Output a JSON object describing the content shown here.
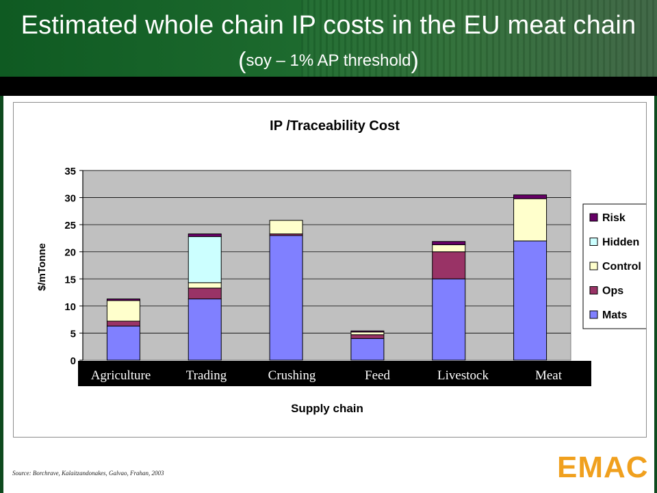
{
  "slide": {
    "title_line1": "Estimated whole chain IP costs in the EU meat chain",
    "title_line2_open": "(",
    "title_line2_text": "soy – 1% AP threshold",
    "title_line2_close": ")",
    "source": "Source: Borchrave,  Kalaitzandonakes, Galvao, Frahan, 2003",
    "logo": "EMAC"
  },
  "colors": {
    "header_green": "#1d6a2e",
    "plot_bg": "#c0c0c0",
    "Mats": "#8080ff",
    "Ops": "#993366",
    "Control": "#ffffcc",
    "Hidden": "#ccffff",
    "Risk": "#660066",
    "logo": "#f0a01e"
  },
  "chart_data": {
    "type": "bar",
    "stacked": true,
    "title": "IP /Traceability Cost",
    "xlabel": "Supply chain",
    "ylabel": "$/mTonne",
    "ylim": [
      0,
      35
    ],
    "yticks": [
      0,
      5,
      10,
      15,
      20,
      25,
      30,
      35
    ],
    "grid": true,
    "legend_position": "right",
    "categories": [
      "Agriculture",
      "Trading",
      "Crushing",
      "Feed",
      "Livestock",
      "Meat"
    ],
    "series": [
      {
        "name": "Mats",
        "color": "#8080ff",
        "values": [
          6.3,
          11.3,
          23.0,
          4.0,
          15.0,
          22.0
        ]
      },
      {
        "name": "Ops",
        "color": "#993366",
        "values": [
          0.9,
          2.0,
          0.3,
          0.7,
          5.0,
          0.0
        ]
      },
      {
        "name": "Control",
        "color": "#ffffcc",
        "values": [
          3.8,
          1.0,
          2.5,
          0.5,
          1.3,
          7.8
        ]
      },
      {
        "name": "Hidden",
        "color": "#ccffff",
        "values": [
          0.0,
          8.5,
          0.0,
          0.0,
          0.0,
          0.0
        ]
      },
      {
        "name": "Risk",
        "color": "#660066",
        "values": [
          0.3,
          0.5,
          0.0,
          0.2,
          0.6,
          0.7
        ]
      }
    ]
  }
}
